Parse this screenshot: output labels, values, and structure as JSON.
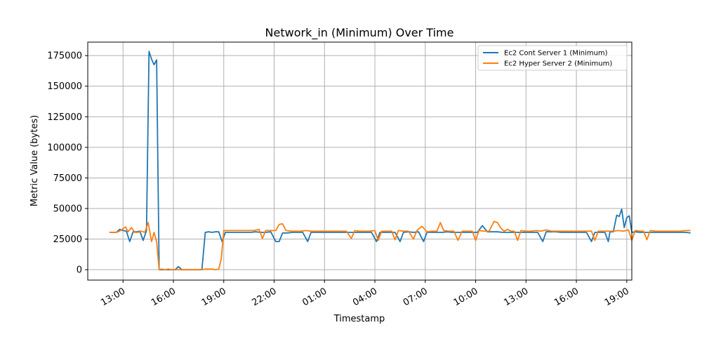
{
  "chart_data": {
    "type": "line",
    "title": "Network_in (Minimum) Over Time",
    "xlabel": "Timestamp",
    "ylabel": "Metric Value (bytes)",
    "x_ticks": [
      "13:00",
      "16:00",
      "19:00",
      "22:00",
      "01:00",
      "04:00",
      "07:00",
      "10:00",
      "13:00",
      "16:00",
      "19:00"
    ],
    "y_ticks": [
      0,
      25000,
      50000,
      75000,
      100000,
      125000,
      150000,
      175000
    ],
    "y_tick_labels": [
      "0",
      "25000",
      "50000",
      "75000",
      "100000",
      "125000",
      "150000",
      "175000"
    ],
    "xlim_hours": [
      10.9,
      43.3
    ],
    "ylim": [
      -8500,
      186000
    ],
    "grid": true,
    "legend_position": "top-right",
    "series": [
      {
        "name": "Ec2 Cont Server 1 (Minimum)",
        "color": "#1f77b4",
        "points": [
          [
            12.2,
            30500
          ],
          [
            12.4,
            30500
          ],
          [
            12.6,
            30500
          ],
          [
            12.8,
            33000
          ],
          [
            13.0,
            32000
          ],
          [
            13.2,
            31500
          ],
          [
            13.4,
            23000
          ],
          [
            13.6,
            31000
          ],
          [
            13.8,
            31000
          ],
          [
            14.0,
            31500
          ],
          [
            14.2,
            24000
          ],
          [
            14.4,
            32000
          ],
          [
            14.55,
            178500
          ],
          [
            14.7,
            172000
          ],
          [
            14.85,
            167500
          ],
          [
            15.0,
            171500
          ],
          [
            15.15,
            0
          ],
          [
            15.3,
            0
          ],
          [
            15.5,
            0
          ],
          [
            15.7,
            0
          ],
          [
            15.9,
            0
          ],
          [
            16.1,
            0
          ],
          [
            16.3,
            2500
          ],
          [
            16.5,
            0
          ],
          [
            16.7,
            0
          ],
          [
            16.9,
            0
          ],
          [
            17.1,
            0
          ],
          [
            17.3,
            0
          ],
          [
            17.5,
            0
          ],
          [
            17.7,
            500
          ],
          [
            17.9,
            30500
          ],
          [
            18.1,
            31000
          ],
          [
            18.3,
            30500
          ],
          [
            18.5,
            31000
          ],
          [
            18.7,
            31000
          ],
          [
            18.9,
            23000
          ],
          [
            19.1,
            30500
          ],
          [
            19.4,
            30500
          ],
          [
            19.7,
            30500
          ],
          [
            20.0,
            30500
          ],
          [
            20.3,
            30500
          ],
          [
            20.6,
            30500
          ],
          [
            20.9,
            31000
          ],
          [
            21.2,
            30500
          ],
          [
            21.5,
            30500
          ],
          [
            21.8,
            31000
          ],
          [
            22.1,
            23000
          ],
          [
            22.3,
            23000
          ],
          [
            22.5,
            30000
          ],
          [
            22.8,
            30000
          ],
          [
            23.1,
            30500
          ],
          [
            23.4,
            30500
          ],
          [
            23.7,
            30500
          ],
          [
            24.0,
            23000
          ],
          [
            24.2,
            30500
          ],
          [
            24.5,
            30500
          ],
          [
            24.8,
            30500
          ],
          [
            25.1,
            30500
          ],
          [
            25.4,
            30500
          ],
          [
            25.7,
            30500
          ],
          [
            26.0,
            30500
          ],
          [
            26.3,
            30500
          ],
          [
            26.6,
            30500
          ],
          [
            26.9,
            30500
          ],
          [
            27.2,
            30500
          ],
          [
            27.5,
            30500
          ],
          [
            27.8,
            30500
          ],
          [
            28.1,
            23000
          ],
          [
            28.3,
            30500
          ],
          [
            28.6,
            30500
          ],
          [
            28.9,
            30500
          ],
          [
            29.2,
            30500
          ],
          [
            29.5,
            23000
          ],
          [
            29.7,
            30500
          ],
          [
            30.0,
            31000
          ],
          [
            30.3,
            30500
          ],
          [
            30.6,
            31000
          ],
          [
            30.9,
            23000
          ],
          [
            31.1,
            30500
          ],
          [
            31.4,
            30500
          ],
          [
            31.7,
            30500
          ],
          [
            32.0,
            30500
          ],
          [
            32.3,
            31000
          ],
          [
            32.6,
            30500
          ],
          [
            32.9,
            30500
          ],
          [
            33.2,
            30500
          ],
          [
            33.5,
            30500
          ],
          [
            33.8,
            30500
          ],
          [
            34.1,
            30500
          ],
          [
            34.4,
            36000
          ],
          [
            34.7,
            31000
          ],
          [
            35.0,
            31000
          ],
          [
            35.3,
            31000
          ],
          [
            35.6,
            30500
          ],
          [
            35.9,
            30500
          ],
          [
            36.2,
            30500
          ],
          [
            36.5,
            30500
          ],
          [
            36.8,
            30500
          ],
          [
            37.1,
            30500
          ],
          [
            37.4,
            30500
          ],
          [
            37.7,
            30500
          ],
          [
            38.0,
            23000
          ],
          [
            38.2,
            31000
          ],
          [
            38.5,
            31000
          ],
          [
            38.8,
            31000
          ],
          [
            39.1,
            30500
          ],
          [
            39.4,
            30500
          ],
          [
            39.7,
            30500
          ],
          [
            40.0,
            30500
          ],
          [
            40.3,
            30500
          ],
          [
            40.6,
            30500
          ],
          [
            40.9,
            23000
          ],
          [
            41.1,
            30500
          ],
          [
            41.4,
            30500
          ],
          [
            41.7,
            30500
          ],
          [
            41.9,
            23000
          ],
          [
            42.0,
            31000
          ],
          [
            42.2,
            31000
          ],
          [
            42.4,
            44500
          ],
          [
            42.55,
            43500
          ],
          [
            42.7,
            49500
          ],
          [
            42.85,
            34500
          ],
          [
            43.0,
            42500
          ],
          [
            43.15,
            44000
          ],
          [
            43.3,
            30500
          ],
          [
            43.5,
            31000
          ],
          [
            43.8,
            30500
          ],
          [
            44.1,
            30500
          ],
          [
            44.4,
            30500
          ],
          [
            44.7,
            30500
          ],
          [
            45.0,
            30500
          ],
          [
            45.3,
            30500
          ],
          [
            45.6,
            30500
          ],
          [
            45.9,
            30500
          ],
          [
            46.2,
            30500
          ],
          [
            46.5,
            30500
          ],
          [
            46.8,
            30000
          ]
        ]
      },
      {
        "name": "Ec2 Hyper Server 2 (Minimum)",
        "color": "#ff7f0e",
        "points": [
          [
            12.2,
            30500
          ],
          [
            12.4,
            30500
          ],
          [
            12.6,
            30500
          ],
          [
            12.8,
            31500
          ],
          [
            13.0,
            33500
          ],
          [
            13.15,
            35000
          ],
          [
            13.3,
            31000
          ],
          [
            13.5,
            34500
          ],
          [
            13.7,
            30500
          ],
          [
            13.9,
            30500
          ],
          [
            14.1,
            31500
          ],
          [
            14.3,
            30500
          ],
          [
            14.5,
            38500
          ],
          [
            14.7,
            23000
          ],
          [
            14.85,
            30500
          ],
          [
            15.0,
            23000
          ],
          [
            15.15,
            0
          ],
          [
            15.3,
            500
          ],
          [
            15.5,
            0
          ],
          [
            15.7,
            500
          ],
          [
            15.9,
            0
          ],
          [
            16.1,
            0
          ],
          [
            16.3,
            0
          ],
          [
            16.5,
            0
          ],
          [
            16.7,
            0
          ],
          [
            16.9,
            0
          ],
          [
            17.1,
            0
          ],
          [
            17.3,
            0
          ],
          [
            17.5,
            0
          ],
          [
            17.7,
            0
          ],
          [
            17.9,
            500
          ],
          [
            18.1,
            500
          ],
          [
            18.3,
            500
          ],
          [
            18.5,
            0
          ],
          [
            18.7,
            500
          ],
          [
            18.85,
            9000
          ],
          [
            19.0,
            32000
          ],
          [
            19.3,
            32000
          ],
          [
            19.6,
            32000
          ],
          [
            19.9,
            32000
          ],
          [
            20.2,
            32000
          ],
          [
            20.5,
            32000
          ],
          [
            20.8,
            32000
          ],
          [
            21.1,
            33000
          ],
          [
            21.3,
            25500
          ],
          [
            21.5,
            32000
          ],
          [
            21.8,
            32000
          ],
          [
            22.1,
            32000
          ],
          [
            22.3,
            37000
          ],
          [
            22.5,
            37500
          ],
          [
            22.7,
            32000
          ],
          [
            23.0,
            31500
          ],
          [
            23.3,
            31500
          ],
          [
            23.6,
            31500
          ],
          [
            23.9,
            32000
          ],
          [
            24.2,
            31500
          ],
          [
            24.5,
            31500
          ],
          [
            24.8,
            31500
          ],
          [
            25.1,
            31500
          ],
          [
            25.4,
            31500
          ],
          [
            25.7,
            31500
          ],
          [
            26.0,
            31500
          ],
          [
            26.3,
            31500
          ],
          [
            26.6,
            25500
          ],
          [
            26.8,
            32000
          ],
          [
            27.1,
            31500
          ],
          [
            27.4,
            31500
          ],
          [
            27.7,
            31500
          ],
          [
            28.0,
            32000
          ],
          [
            28.2,
            24000
          ],
          [
            28.4,
            31500
          ],
          [
            28.7,
            31500
          ],
          [
            29.0,
            31500
          ],
          [
            29.2,
            24500
          ],
          [
            29.4,
            32000
          ],
          [
            29.7,
            31500
          ],
          [
            30.0,
            31500
          ],
          [
            30.3,
            25000
          ],
          [
            30.5,
            32000
          ],
          [
            30.8,
            35500
          ],
          [
            31.1,
            31000
          ],
          [
            31.4,
            31500
          ],
          [
            31.7,
            31500
          ],
          [
            31.9,
            38500
          ],
          [
            32.1,
            32000
          ],
          [
            32.4,
            31500
          ],
          [
            32.7,
            31500
          ],
          [
            32.95,
            24000
          ],
          [
            33.2,
            31500
          ],
          [
            33.5,
            31500
          ],
          [
            33.8,
            31500
          ],
          [
            34.0,
            24000
          ],
          [
            34.2,
            32000
          ],
          [
            34.5,
            31500
          ],
          [
            34.8,
            31500
          ],
          [
            35.1,
            39500
          ],
          [
            35.3,
            38500
          ],
          [
            35.5,
            34000
          ],
          [
            35.7,
            31500
          ],
          [
            35.9,
            33000
          ],
          [
            36.1,
            31500
          ],
          [
            36.3,
            31500
          ],
          [
            36.5,
            24000
          ],
          [
            36.7,
            32000
          ],
          [
            37.0,
            31500
          ],
          [
            37.3,
            31500
          ],
          [
            37.6,
            32000
          ],
          [
            37.9,
            31500
          ],
          [
            38.2,
            32500
          ],
          [
            38.5,
            31500
          ],
          [
            38.8,
            31500
          ],
          [
            39.1,
            31500
          ],
          [
            39.4,
            31500
          ],
          [
            39.7,
            31500
          ],
          [
            40.0,
            31500
          ],
          [
            40.3,
            31500
          ],
          [
            40.6,
            31500
          ],
          [
            40.9,
            31500
          ],
          [
            41.1,
            24000
          ],
          [
            41.3,
            31500
          ],
          [
            41.6,
            31500
          ],
          [
            41.9,
            31500
          ],
          [
            42.2,
            31500
          ],
          [
            42.5,
            32000
          ],
          [
            42.8,
            31500
          ],
          [
            43.1,
            32500
          ],
          [
            43.3,
            24000
          ],
          [
            43.5,
            32000
          ],
          [
            43.8,
            31500
          ],
          [
            44.0,
            31500
          ],
          [
            44.2,
            24500
          ],
          [
            44.4,
            32000
          ],
          [
            44.7,
            31500
          ],
          [
            45.0,
            31500
          ],
          [
            45.3,
            31500
          ],
          [
            45.6,
            31500
          ],
          [
            45.9,
            31500
          ],
          [
            46.2,
            31500
          ],
          [
            46.5,
            32000
          ],
          [
            46.8,
            32000
          ]
        ]
      }
    ]
  }
}
